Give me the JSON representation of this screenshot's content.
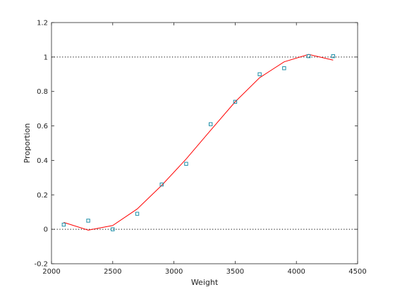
{
  "chart_data": {
    "type": "scatter",
    "xlabel": "Weight",
    "ylabel": "Proportion",
    "xlim": [
      2000,
      4500
    ],
    "ylim": [
      -0.2,
      1.2
    ],
    "xticks": [
      2000,
      2500,
      3000,
      3500,
      4000,
      4500
    ],
    "yticks": [
      -0.2,
      0,
      0.2,
      0.4,
      0.6,
      0.8,
      1,
      1.2
    ],
    "xtick_labels": [
      "2000",
      "2500",
      "3000",
      "3500",
      "4000",
      "4500"
    ],
    "ytick_labels": [
      "-0.2",
      "0",
      "0.2",
      "0.4",
      "0.6",
      "0.8",
      "1",
      "1.2"
    ],
    "reference_lines": [
      0,
      1
    ],
    "grid": false,
    "series": [
      {
        "type": "scatter",
        "marker": "square",
        "color": "#1f8fa8",
        "x": [
          2100,
          2300,
          2500,
          2700,
          2900,
          3100,
          3300,
          3500,
          3700,
          3900,
          4100,
          4300
        ],
        "y": [
          0.027,
          0.05,
          0.0,
          0.09,
          0.26,
          0.38,
          0.61,
          0.74,
          0.9,
          0.935,
          1.005,
          1.005
        ]
      },
      {
        "type": "line",
        "color": "#ff0000",
        "x": [
          2100,
          2300,
          2500,
          2700,
          2900,
          3100,
          3300,
          3500,
          3700,
          3900,
          4100,
          4300
        ],
        "y": [
          0.04,
          -0.005,
          0.022,
          0.118,
          0.255,
          0.408,
          0.575,
          0.74,
          0.88,
          0.972,
          1.015,
          0.982
        ]
      }
    ]
  }
}
